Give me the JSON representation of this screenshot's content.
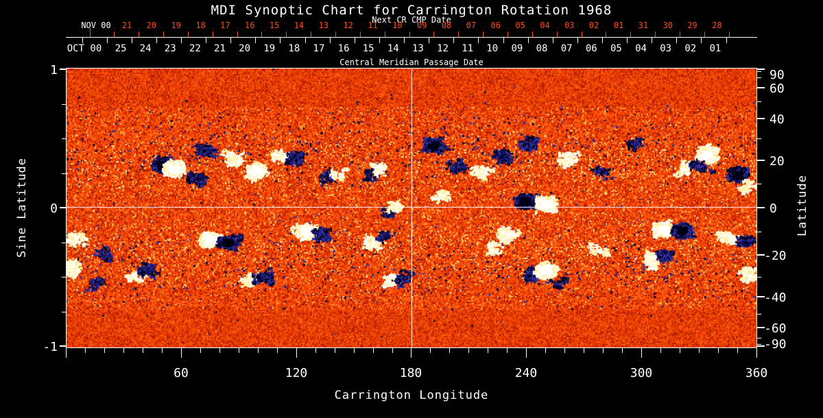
{
  "title": "MDI Synoptic Chart for Carrington Rotation 1968",
  "top_axis": {
    "subtitle": "Next CR CMP Date",
    "caption": "Central Meridian Passage Date",
    "red_color": "#ff4a1c",
    "red_month_label": "NOV 00",
    "white_month_label": "OCT 00",
    "red_days": [
      "21",
      "20",
      "19",
      "18",
      "17",
      "16",
      "15",
      "14",
      "13",
      "12",
      "11",
      "10",
      "09",
      "08",
      "07",
      "06",
      "05",
      "04",
      "03",
      "02",
      "01",
      "31",
      "30",
      "29",
      "28"
    ],
    "white_days": [
      "25",
      "24",
      "23",
      "22",
      "21",
      "20",
      "19",
      "18",
      "17",
      "16",
      "15",
      "14",
      "13",
      "12",
      "11",
      "10",
      "09",
      "08",
      "07",
      "06",
      "05",
      "04",
      "03",
      "02",
      "01"
    ]
  },
  "left_axis": {
    "title": "Sine Latitude",
    "ticks": [
      {
        "label": "1",
        "value": 1
      },
      {
        "label": "0",
        "value": 0
      },
      {
        "label": "-1",
        "value": -1
      }
    ]
  },
  "right_axis": {
    "title": "Latitude",
    "ticks": [
      {
        "label": "90",
        "value": 90
      },
      {
        "label": "60",
        "value": 60
      },
      {
        "label": "40",
        "value": 40
      },
      {
        "label": "20",
        "value": 20
      },
      {
        "label": "0",
        "value": 0
      },
      {
        "label": "-20",
        "value": -20
      },
      {
        "label": "-40",
        "value": -40
      },
      {
        "label": "-60",
        "value": -60
      },
      {
        "label": "-90",
        "value": -90
      }
    ]
  },
  "bottom_axis": {
    "title": "Carrington Longitude",
    "ticks": [
      {
        "label": "60",
        "value": 60
      },
      {
        "label": "120",
        "value": 120
      },
      {
        "label": "180",
        "value": 180
      },
      {
        "label": "240",
        "value": 240
      },
      {
        "label": "300",
        "value": 300
      },
      {
        "label": "360",
        "value": 360
      }
    ]
  },
  "chart_data": {
    "type": "heatmap",
    "title": "MDI Synoptic Chart for Carrington Rotation 1968",
    "xlabel": "Carrington Longitude",
    "ylabel_left": "Sine Latitude",
    "ylabel_right": "Latitude",
    "x_range": [
      0,
      360
    ],
    "sine_latitude_range": [
      -1,
      1
    ],
    "latitude_tick_values": [
      90,
      60,
      40,
      20,
      0,
      -20,
      -40,
      -60,
      -90
    ],
    "crosshair": {
      "longitude": 180,
      "sine_latitude": 0
    },
    "colormap_background": [
      "#9c1400",
      "#c22400",
      "#e83a00",
      "#ff5208",
      "#ff6d1d",
      "#ff9a38",
      "#ffd45c"
    ],
    "positive_polarity_colors": [
      "#ffffff",
      "#fffef0",
      "#fff8c8",
      "#ffee9a"
    ],
    "negative_polarity_colors": [
      "#000018",
      "#0a0a46",
      "#1c1c78",
      "#30309b"
    ],
    "active_regions": [
      {
        "lon": 50,
        "slat": 0.31,
        "polarity": "negative",
        "size": "XL"
      },
      {
        "lon": 56,
        "slat": 0.28,
        "polarity": "positive",
        "size": "XL"
      },
      {
        "lon": 68,
        "slat": 0.22,
        "polarity": "negative",
        "size": "M"
      },
      {
        "lon": 73,
        "slat": 0.43,
        "polarity": "negative",
        "size": "M"
      },
      {
        "lon": 87,
        "slat": 0.35,
        "polarity": "positive",
        "size": "M"
      },
      {
        "lon": 99,
        "slat": 0.27,
        "polarity": "positive",
        "size": "XL"
      },
      {
        "lon": 112,
        "slat": 0.37,
        "polarity": "positive",
        "size": "M"
      },
      {
        "lon": 120,
        "slat": 0.36,
        "polarity": "negative",
        "size": "M"
      },
      {
        "lon": 137,
        "slat": 0.22,
        "polarity": "negative",
        "size": "S"
      },
      {
        "lon": 141,
        "slat": 0.25,
        "polarity": "positive",
        "size": "S"
      },
      {
        "lon": 158,
        "slat": 0.24,
        "polarity": "negative",
        "size": "S"
      },
      {
        "lon": 162,
        "slat": 0.27,
        "polarity": "positive",
        "size": "S"
      },
      {
        "lon": 168,
        "slat": -0.04,
        "polarity": "negative",
        "size": "S"
      },
      {
        "lon": 171,
        "slat": 0.02,
        "polarity": "positive",
        "size": "S"
      },
      {
        "lon": 191,
        "slat": 0.46,
        "polarity": "negative",
        "size": "L"
      },
      {
        "lon": 196,
        "slat": 0.08,
        "polarity": "positive",
        "size": "S"
      },
      {
        "lon": 204,
        "slat": 0.3,
        "polarity": "negative",
        "size": "M"
      },
      {
        "lon": 216,
        "slat": 0.26,
        "polarity": "positive",
        "size": "M"
      },
      {
        "lon": 227,
        "slat": 0.37,
        "polarity": "negative",
        "size": "M"
      },
      {
        "lon": 241,
        "slat": 0.47,
        "polarity": "negative",
        "size": "M"
      },
      {
        "lon": 239,
        "slat": 0.05,
        "polarity": "negative",
        "size": "XL"
      },
      {
        "lon": 250,
        "slat": 0.03,
        "polarity": "positive",
        "size": "XL"
      },
      {
        "lon": 261,
        "slat": 0.36,
        "polarity": "positive",
        "size": "M"
      },
      {
        "lon": 280,
        "slat": 0.26,
        "polarity": "negative",
        "size": "S"
      },
      {
        "lon": 296,
        "slat": 0.48,
        "polarity": "negative",
        "size": "S"
      },
      {
        "lon": 322,
        "slat": 0.3,
        "polarity": "positive",
        "size": "S"
      },
      {
        "lon": 334,
        "slat": 0.39,
        "polarity": "positive",
        "size": "XL"
      },
      {
        "lon": 331,
        "slat": 0.3,
        "polarity": "negative",
        "size": "M"
      },
      {
        "lon": 350,
        "slat": 0.24,
        "polarity": "negative",
        "size": "XL"
      },
      {
        "lon": 357,
        "slat": 0.16,
        "polarity": "positive",
        "size": "S"
      },
      {
        "lon": 5,
        "slat": -0.23,
        "polarity": "positive",
        "size": "M"
      },
      {
        "lon": 2,
        "slat": -0.43,
        "polarity": "positive",
        "size": "M"
      },
      {
        "lon": 16,
        "slat": -0.55,
        "polarity": "negative",
        "size": "S"
      },
      {
        "lon": 19,
        "slat": -0.33,
        "polarity": "negative",
        "size": "S"
      },
      {
        "lon": 36,
        "slat": -0.48,
        "polarity": "positive",
        "size": "S"
      },
      {
        "lon": 42,
        "slat": -0.45,
        "polarity": "negative",
        "size": "M"
      },
      {
        "lon": 75,
        "slat": -0.23,
        "polarity": "positive",
        "size": "XL"
      },
      {
        "lon": 84,
        "slat": -0.25,
        "polarity": "negative",
        "size": "XL"
      },
      {
        "lon": 96,
        "slat": -0.52,
        "polarity": "positive",
        "size": "M"
      },
      {
        "lon": 104,
        "slat": -0.5,
        "polarity": "negative",
        "size": "M"
      },
      {
        "lon": 125,
        "slat": -0.17,
        "polarity": "positive",
        "size": "XL"
      },
      {
        "lon": 134,
        "slat": -0.19,
        "polarity": "negative",
        "size": "M"
      },
      {
        "lon": 160,
        "slat": -0.24,
        "polarity": "positive",
        "size": "M"
      },
      {
        "lon": 166,
        "slat": -0.2,
        "polarity": "negative",
        "size": "S"
      },
      {
        "lon": 169,
        "slat": -0.52,
        "polarity": "positive",
        "size": "M"
      },
      {
        "lon": 175,
        "slat": -0.5,
        "polarity": "negative",
        "size": "S"
      },
      {
        "lon": 224,
        "slat": -0.3,
        "polarity": "positive",
        "size": "S"
      },
      {
        "lon": 230,
        "slat": -0.18,
        "polarity": "positive",
        "size": "M"
      },
      {
        "lon": 242,
        "slat": -0.48,
        "polarity": "negative",
        "size": "M"
      },
      {
        "lon": 250,
        "slat": -0.45,
        "polarity": "positive",
        "size": "XL"
      },
      {
        "lon": 257,
        "slat": -0.54,
        "polarity": "negative",
        "size": "S"
      },
      {
        "lon": 277,
        "slat": -0.3,
        "polarity": "positive",
        "size": "S"
      },
      {
        "lon": 305,
        "slat": -0.38,
        "polarity": "positive",
        "size": "M"
      },
      {
        "lon": 312,
        "slat": -0.35,
        "polarity": "negative",
        "size": "M"
      },
      {
        "lon": 311,
        "slat": -0.16,
        "polarity": "positive",
        "size": "XL"
      },
      {
        "lon": 321,
        "slat": -0.16,
        "polarity": "negative",
        "size": "XL"
      },
      {
        "lon": 346,
        "slat": -0.21,
        "polarity": "positive",
        "size": "M"
      },
      {
        "lon": 355,
        "slat": -0.23,
        "polarity": "negative",
        "size": "M"
      },
      {
        "lon": 355,
        "slat": -0.48,
        "polarity": "positive",
        "size": "M"
      }
    ]
  }
}
